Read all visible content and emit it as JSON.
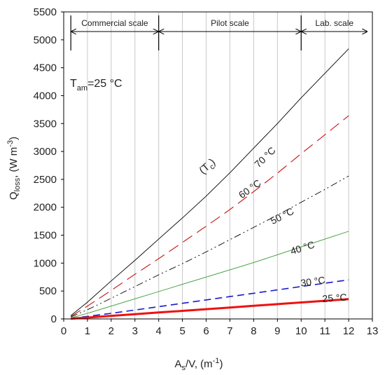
{
  "chart_data": {
    "type": "line",
    "xlabel_main": "A",
    "xlabel_sub": "s",
    "xlabel_rest": "/V, (m",
    "xlabel_sup": "-1",
    "xlabel_end": ")",
    "ylabel_main": "Q",
    "ylabel_sub": "loss",
    "ylabel_rest": ", (W m",
    "ylabel_sup": "-3",
    "ylabel_end": ")",
    "xlim": [
      0,
      13
    ],
    "ylim": [
      0,
      5500
    ],
    "x_ticks": [
      "0",
      "1",
      "2",
      "3",
      "4",
      "5",
      "6",
      "7",
      "8",
      "9",
      "10",
      "11",
      "12",
      "13"
    ],
    "y_ticks": [
      "0",
      "500",
      "1000",
      "1500",
      "2000",
      "2500",
      "3000",
      "3500",
      "4000",
      "4500",
      "5000",
      "5500"
    ],
    "grid": "vertical",
    "annotation_tam_main": "T",
    "annotation_tam_sub": "am",
    "annotation_tam_value": "=25 °C",
    "annotation_tc": "(T",
    "annotation_tc_sub": "c",
    "annotation_tc_end": ")",
    "scales": [
      {
        "label": "Commercial scale",
        "from": 0.3,
        "to": 4
      },
      {
        "label": "Pilot scale",
        "from": 4,
        "to": 10
      },
      {
        "label": "Lab. scale",
        "from": 10,
        "to": 12.8
      }
    ],
    "series": [
      {
        "name": "70 °C",
        "color": "#000000",
        "dash": "solid",
        "width": 0.9,
        "x": [
          0.3,
          1,
          2,
          3,
          4,
          5,
          6,
          7,
          8,
          9,
          10,
          11,
          12
        ],
        "y": [
          60,
          300,
          680,
          1050,
          1430,
          1810,
          2200,
          2620,
          3060,
          3500,
          3960,
          4400,
          4840
        ],
        "label_x": 8.2,
        "label_y": 2700
      },
      {
        "name": "60 °C",
        "color": "#cc2222",
        "dash": "long-dash",
        "width": 1.2,
        "x": [
          0.3,
          1,
          2,
          3,
          4,
          5,
          6,
          7,
          8,
          9,
          10,
          11,
          12
        ],
        "y": [
          45,
          230,
          510,
          800,
          1080,
          1370,
          1660,
          1960,
          2280,
          2610,
          2960,
          3300,
          3640
        ],
        "label_x": 7.5,
        "label_y": 2150
      },
      {
        "name": "50 °C",
        "color": "#000000",
        "dash": "dash-dot-dot",
        "width": 0.9,
        "x": [
          0.3,
          1,
          2,
          3,
          4,
          5,
          6,
          7,
          8,
          9,
          10,
          11,
          12
        ],
        "y": [
          35,
          165,
          370,
          580,
          790,
          990,
          1200,
          1420,
          1640,
          1860,
          2090,
          2320,
          2560
        ],
        "label_x": 8.8,
        "label_y": 1690
      },
      {
        "name": "40 °C",
        "color": "#339933",
        "dash": "solid",
        "width": 0.9,
        "x": [
          0.3,
          1,
          2,
          3,
          4,
          5,
          6,
          7,
          8,
          9,
          10,
          11,
          12
        ],
        "y": [
          20,
          100,
          230,
          360,
          490,
          620,
          750,
          880,
          1010,
          1150,
          1290,
          1430,
          1570
        ],
        "label_x": 9.6,
        "label_y": 1150
      },
      {
        "name": "30 °C",
        "color": "#1a1acc",
        "dash": "dash",
        "width": 1.6,
        "x": [
          0.3,
          1,
          2,
          3,
          4,
          5,
          6,
          7,
          8,
          9,
          10,
          11,
          12
        ],
        "y": [
          10,
          45,
          100,
          160,
          220,
          280,
          340,
          400,
          460,
          520,
          580,
          640,
          700
        ],
        "label_x": 10,
        "label_y": 580
      },
      {
        "name": "25 °C",
        "color": "#ee1111",
        "dash": "solid",
        "width": 3,
        "x": [
          0.3,
          1,
          2,
          3,
          4,
          5,
          6,
          7,
          8,
          9,
          10,
          11,
          12
        ],
        "y": [
          5,
          25,
          55,
          85,
          115,
          145,
          175,
          205,
          235,
          265,
          295,
          325,
          355
        ],
        "label_x": 10.9,
        "label_y": 300
      }
    ]
  }
}
